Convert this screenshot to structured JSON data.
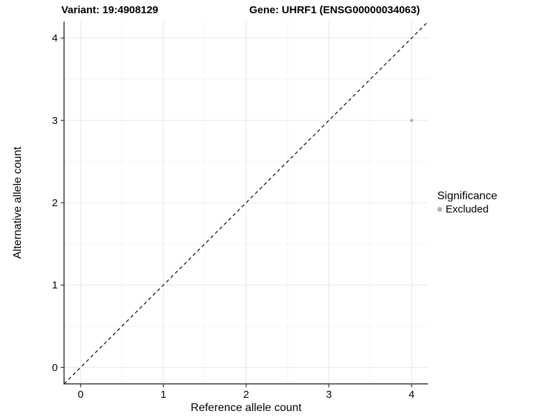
{
  "chart_data": {
    "type": "scatter",
    "title_left": "Variant: 19:4908129",
    "title_right": "Gene: UHRF1 (ENSG00000034063)",
    "xlabel": "Reference allele count",
    "ylabel": "Alternative allele count",
    "xlim": [
      -0.2,
      4.2
    ],
    "ylim": [
      -0.2,
      4.2
    ],
    "x_ticks": [
      "0",
      "1",
      "2",
      "3",
      "4"
    ],
    "y_ticks": [
      "0",
      "1",
      "2",
      "3",
      "4"
    ],
    "x_tick_values": [
      0,
      1,
      2,
      3,
      4
    ],
    "y_tick_values": [
      0,
      1,
      2,
      3,
      4
    ],
    "x_minor_ticks": [
      0.5,
      1.5,
      2.5,
      3.5
    ],
    "y_minor_ticks": [
      0.5,
      1.5,
      2.5,
      3.5
    ],
    "grid": true,
    "points": [
      {
        "x": 4,
        "y": 3,
        "series": "Excluded"
      }
    ],
    "reference_line": {
      "kind": "identity",
      "style": "dashed"
    },
    "legend": {
      "title": "Significance",
      "position": "right",
      "entries": [
        {
          "label": "Excluded",
          "marker": "circle",
          "color": "#b3b3b3"
        }
      ]
    },
    "colors": {
      "point": "#b3b3b3",
      "grid_major": "#e8e8e8",
      "grid_minor": "#f4f4f4",
      "axis": "#333333",
      "tick": "#333333",
      "text": "#000000",
      "reference_line": "#000000",
      "background": "#ffffff"
    }
  }
}
